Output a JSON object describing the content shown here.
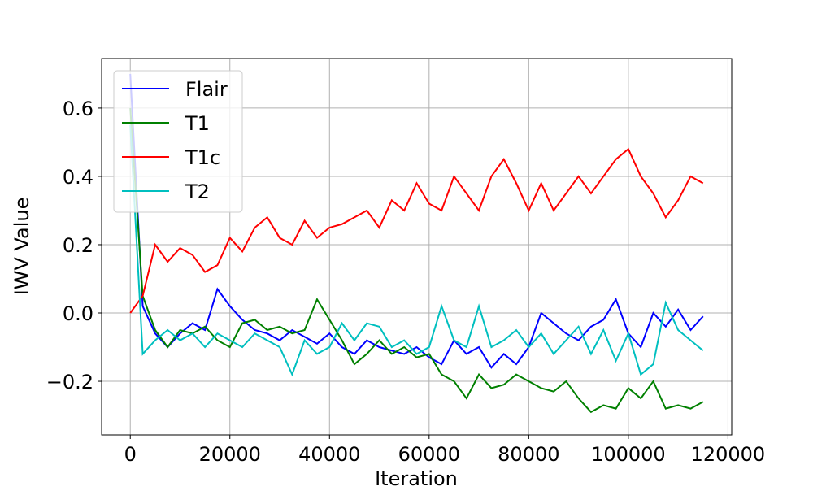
{
  "chart_data": {
    "type": "line",
    "x_label": "Iteration",
    "y_label": "IWV Value",
    "x": [
      0,
      2500,
      5000,
      7500,
      10000,
      12500,
      15000,
      17500,
      20000,
      22500,
      25000,
      27500,
      30000,
      32500,
      35000,
      37500,
      40000,
      42500,
      45000,
      47500,
      50000,
      52500,
      55000,
      57500,
      60000,
      62500,
      65000,
      67500,
      70000,
      72500,
      75000,
      77500,
      80000,
      82500,
      85000,
      87500,
      90000,
      92500,
      95000,
      97500,
      100000,
      102500,
      105000,
      107500,
      110000,
      112500,
      115000
    ],
    "series": [
      {
        "name": "Flair",
        "color": "#0000ff",
        "values": [
          0.7,
          0.02,
          -0.06,
          -0.1,
          -0.06,
          -0.03,
          -0.05,
          0.07,
          0.02,
          -0.02,
          -0.05,
          -0.06,
          -0.08,
          -0.05,
          -0.07,
          -0.09,
          -0.06,
          -0.1,
          -0.12,
          -0.08,
          -0.1,
          -0.11,
          -0.12,
          -0.1,
          -0.13,
          -0.15,
          -0.08,
          -0.12,
          -0.1,
          -0.16,
          -0.12,
          -0.15,
          -0.1,
          0.0,
          -0.03,
          -0.06,
          -0.08,
          -0.04,
          -0.02,
          0.04,
          -0.06,
          -0.1,
          0.0,
          -0.04,
          0.01,
          -0.05,
          -0.01
        ]
      },
      {
        "name": "T1",
        "color": "#008000",
        "values": [
          0.6,
          0.05,
          -0.05,
          -0.1,
          -0.05,
          -0.06,
          -0.04,
          -0.08,
          -0.1,
          -0.03,
          -0.02,
          -0.05,
          -0.04,
          -0.06,
          -0.05,
          0.04,
          -0.02,
          -0.08,
          -0.15,
          -0.12,
          -0.08,
          -0.12,
          -0.1,
          -0.13,
          -0.12,
          -0.18,
          -0.2,
          -0.25,
          -0.18,
          -0.22,
          -0.21,
          -0.18,
          -0.2,
          -0.22,
          -0.23,
          -0.2,
          -0.25,
          -0.29,
          -0.27,
          -0.28,
          -0.22,
          -0.25,
          -0.2,
          -0.28,
          -0.27,
          -0.28,
          -0.26
        ]
      },
      {
        "name": "T1c",
        "color": "#ff0000",
        "values": [
          0.0,
          0.05,
          0.2,
          0.15,
          0.19,
          0.17,
          0.12,
          0.14,
          0.22,
          0.18,
          0.25,
          0.28,
          0.22,
          0.2,
          0.27,
          0.22,
          0.25,
          0.26,
          0.28,
          0.3,
          0.25,
          0.33,
          0.3,
          0.38,
          0.32,
          0.3,
          0.4,
          0.35,
          0.3,
          0.4,
          0.45,
          0.38,
          0.3,
          0.38,
          0.3,
          0.35,
          0.4,
          0.35,
          0.4,
          0.45,
          0.48,
          0.4,
          0.35,
          0.28,
          0.33,
          0.4,
          0.38
        ]
      },
      {
        "name": "T2",
        "color": "#00bfbf",
        "values": [
          0.55,
          -0.12,
          -0.08,
          -0.05,
          -0.08,
          -0.06,
          -0.1,
          -0.06,
          -0.08,
          -0.1,
          -0.06,
          -0.08,
          -0.1,
          -0.18,
          -0.08,
          -0.12,
          -0.1,
          -0.03,
          -0.08,
          -0.03,
          -0.04,
          -0.1,
          -0.08,
          -0.12,
          -0.1,
          0.02,
          -0.08,
          -0.1,
          0.02,
          -0.1,
          -0.08,
          -0.05,
          -0.1,
          -0.06,
          -0.12,
          -0.08,
          -0.04,
          -0.12,
          -0.05,
          -0.14,
          -0.06,
          -0.18,
          -0.15,
          0.03,
          -0.05,
          -0.08,
          -0.11
        ]
      }
    ],
    "xlim": [
      -5750,
      120750
    ],
    "xticks": [
      0,
      20000,
      40000,
      60000,
      80000,
      100000,
      120000
    ],
    "ylim": [
      -0.357,
      0.745
    ],
    "yticks": [
      {
        "value": -0.2,
        "label": "−0.2"
      },
      {
        "value": 0,
        "label": "0.0"
      },
      0.2,
      0.4,
      0.6
    ],
    "grid": true,
    "legend": "upper-left"
  }
}
